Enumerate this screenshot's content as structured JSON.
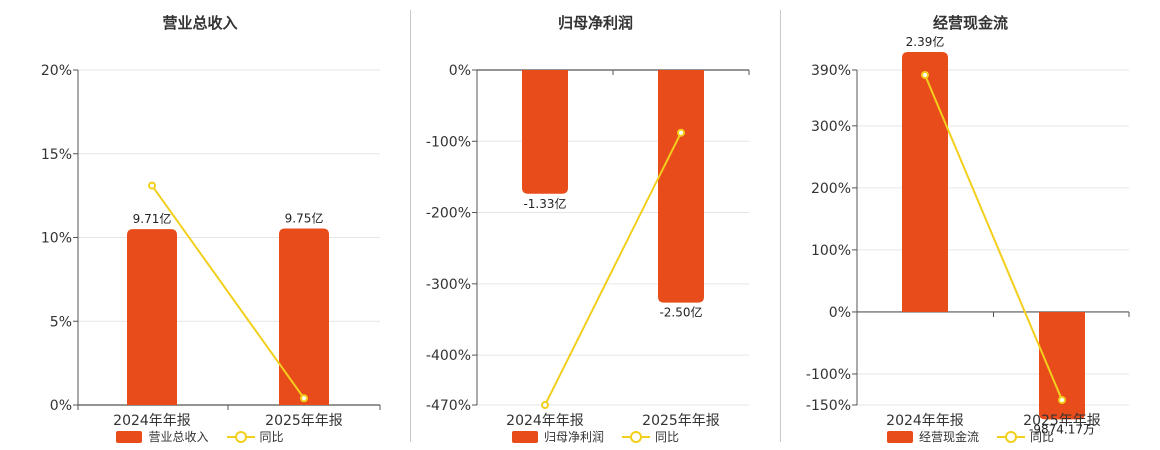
{
  "colors": {
    "bar": "#E84C1A",
    "line": "#F2CF1D",
    "grid": "#e6e6e6",
    "axis": "#555555"
  },
  "chart_data": [
    {
      "type": "bar",
      "title": "营业总收入",
      "categories": [
        "2024年年报",
        "2025年年报"
      ],
      "series": [
        {
          "name": "营业总收入",
          "type": "bar",
          "values": [
            9.71,
            9.75
          ],
          "unit": "亿",
          "labels": [
            "9.71亿",
            "9.75亿"
          ]
        },
        {
          "name": "同比",
          "type": "line",
          "values": [
            13.1,
            0.4
          ],
          "unit": "%"
        }
      ],
      "yticks": [
        "0%",
        "5%",
        "10%",
        "15%",
        "20%"
      ],
      "ylim": [
        0,
        20
      ],
      "legend": "bottom",
      "grid": true
    },
    {
      "type": "bar",
      "title": "归母净利润",
      "categories": [
        "2024年年报",
        "2025年年报"
      ],
      "series": [
        {
          "name": "归母净利润",
          "type": "bar",
          "values": [
            -1.33,
            -2.5
          ],
          "unit": "亿",
          "labels": [
            "-1.33亿",
            "-2.50亿"
          ]
        },
        {
          "name": "同比",
          "type": "line",
          "values": [
            -470,
            -88
          ],
          "unit": "%"
        }
      ],
      "yticks": [
        "0%",
        "-100%",
        "-200%",
        "-300%",
        "-400%",
        "-470%"
      ],
      "ylim": [
        -470,
        0
      ],
      "legend": "bottom",
      "grid": true
    },
    {
      "type": "bar",
      "title": "经营现金流",
      "categories": [
        "2024年年报",
        "2025年年报"
      ],
      "series": [
        {
          "name": "经营现金流",
          "type": "bar",
          "values": [
            2.39,
            -0.9874
          ],
          "unit": "亿",
          "labels": [
            "2.39亿",
            "-9874.17万"
          ]
        },
        {
          "name": "同比",
          "type": "line",
          "values": [
            382,
            -142
          ],
          "unit": "%"
        }
      ],
      "yticks": [
        "390%",
        "300%",
        "200%",
        "100%",
        "0%",
        "-100%",
        "-150%"
      ],
      "ylim": [
        -150,
        390
      ],
      "legend": "bottom",
      "grid": true
    }
  ]
}
